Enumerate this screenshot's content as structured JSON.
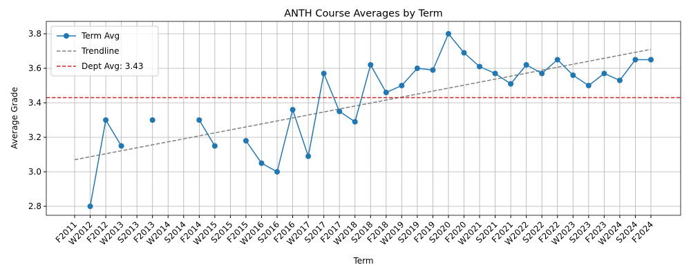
{
  "chart_data": {
    "type": "line",
    "title": "ANTH Course Averages by Term",
    "x_label": "Term",
    "y_label": "Average Grade",
    "categories": [
      "F2011",
      "W2012",
      "F2012",
      "W2013",
      "S2013",
      "F2013",
      "W2014",
      "S2014",
      "F2014",
      "W2015",
      "S2015",
      "F2015",
      "W2016",
      "S2016",
      "F2016",
      "W2017",
      "S2017",
      "F2017",
      "W2018",
      "S2018",
      "F2018",
      "W2019",
      "S2019",
      "F2019",
      "S2020",
      "F2020",
      "W2021",
      "S2021",
      "F2021",
      "W2022",
      "S2022",
      "F2022",
      "W2023",
      "S2023",
      "F2023",
      "W2024",
      "S2024",
      "F2024"
    ],
    "series": [
      {
        "name": "Term Avg",
        "color": "#1f77b4",
        "values": [
          null,
          2.8,
          3.3,
          3.15,
          null,
          3.3,
          null,
          null,
          3.3,
          3.15,
          null,
          3.18,
          3.05,
          3.0,
          3.36,
          3.09,
          3.57,
          3.35,
          3.29,
          3.62,
          3.46,
          3.5,
          3.6,
          3.59,
          3.8,
          3.69,
          3.61,
          3.57,
          3.51,
          3.62,
          3.57,
          3.65,
          3.56,
          3.5,
          3.57,
          3.53,
          3.65,
          3.65
        ]
      }
    ],
    "trendline": {
      "name": "Trendline",
      "color": "#808080",
      "values": [
        3.07,
        3.71
      ]
    },
    "reference_line": {
      "label": "Dept Avg: 3.43",
      "value": 3.43,
      "color": "#d62728"
    },
    "ylim": [
      2.748,
      3.872
    ],
    "yticks": [
      2.8,
      {
        "value": 3.0,
        "label": "3.0"
      },
      3.2,
      3.4,
      3.6,
      3.8
    ],
    "grid": true,
    "legend": "upper left"
  }
}
